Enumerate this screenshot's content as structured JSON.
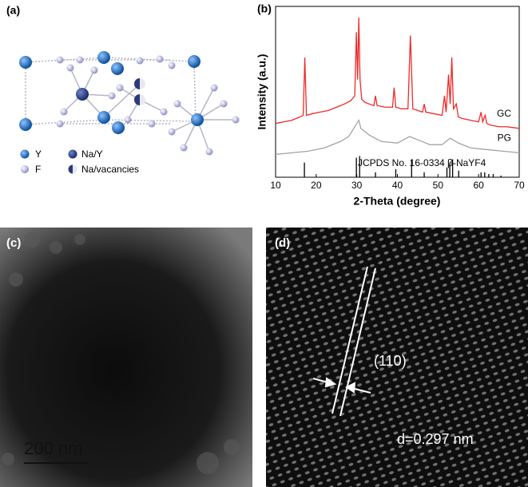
{
  "panels": {
    "a": {
      "label": "(a)",
      "legend": [
        "Y",
        "Na/Y",
        "F",
        "Na/vacancies"
      ]
    },
    "c": {
      "label": "(c)",
      "scale_bar": "200 nm"
    },
    "d": {
      "label": "(d)",
      "plane": "(110)",
      "spacing": "d=0.297 nm"
    }
  },
  "chart_data": {
    "type": "line",
    "label": "(b)",
    "x_label": "2-Theta (degree)",
    "y_label": "Intensity (a.u.)",
    "xlim": [
      10,
      70
    ],
    "xticks": [
      10,
      20,
      30,
      40,
      50,
      60,
      70
    ],
    "ylim": [
      0,
      100
    ],
    "annotation": "JCPDS No. 16-0334 β-NaYF4",
    "series": [
      {
        "name": "GC",
        "color": "#ee2a2a",
        "x": [
          10,
          12,
          14,
          16,
          16.8,
          17.2,
          17.6,
          19,
          21,
          23,
          25,
          27,
          28.5,
          29.5,
          29.9,
          30.2,
          30.5,
          30.8,
          31.2,
          32,
          33,
          34.2,
          34.6,
          35,
          37,
          38.8,
          39.2,
          39.6,
          41,
          42.6,
          43.2,
          43.8,
          45,
          46.2,
          46.6,
          47,
          49,
          51,
          51.6,
          52,
          52.6,
          53,
          53.4,
          53.8,
          54.5,
          55,
          56,
          58,
          60,
          60.6,
          61,
          61.6,
          62,
          63,
          65,
          67,
          70
        ],
        "values": [
          33,
          34,
          35,
          37,
          38,
          73.5,
          38,
          39,
          40,
          41,
          43,
          45,
          47,
          50,
          89,
          60,
          98,
          60,
          48,
          46,
          45,
          44,
          50,
          44,
          43,
          43,
          55,
          43,
          42,
          42,
          87,
          42,
          41,
          40,
          45,
          40,
          39,
          38,
          50,
          40,
          63,
          45,
          73.5,
          42,
          45,
          37,
          36,
          35,
          34,
          40,
          34,
          38,
          33,
          32,
          31,
          31,
          30
        ]
      },
      {
        "name": "PG",
        "color": "#a3a3a3",
        "x": [
          10,
          14,
          18,
          22,
          26,
          28,
          30,
          30.5,
          31,
          33,
          36,
          40,
          43,
          45,
          48,
          51,
          53,
          55,
          58,
          62,
          66,
          70
        ],
        "values": [
          14,
          15,
          16,
          18,
          22,
          25,
          33,
          35,
          30,
          26,
          22,
          21,
          25,
          23,
          20,
          20,
          24,
          21,
          18,
          17,
          16,
          15
        ]
      }
    ],
    "reference": {
      "color": "#000000",
      "x": [
        17.1,
        29.9,
        30.7,
        34.6,
        39.6,
        43.5,
        46.6,
        52.2,
        52.9,
        53.6,
        55.1,
        60.6,
        61.5,
        62.5,
        63.6,
        65.5
      ],
      "values": [
        9,
        12,
        13,
        3,
        5,
        11,
        3,
        6,
        9,
        11,
        4,
        3,
        3,
        2,
        2,
        1
      ]
    }
  }
}
